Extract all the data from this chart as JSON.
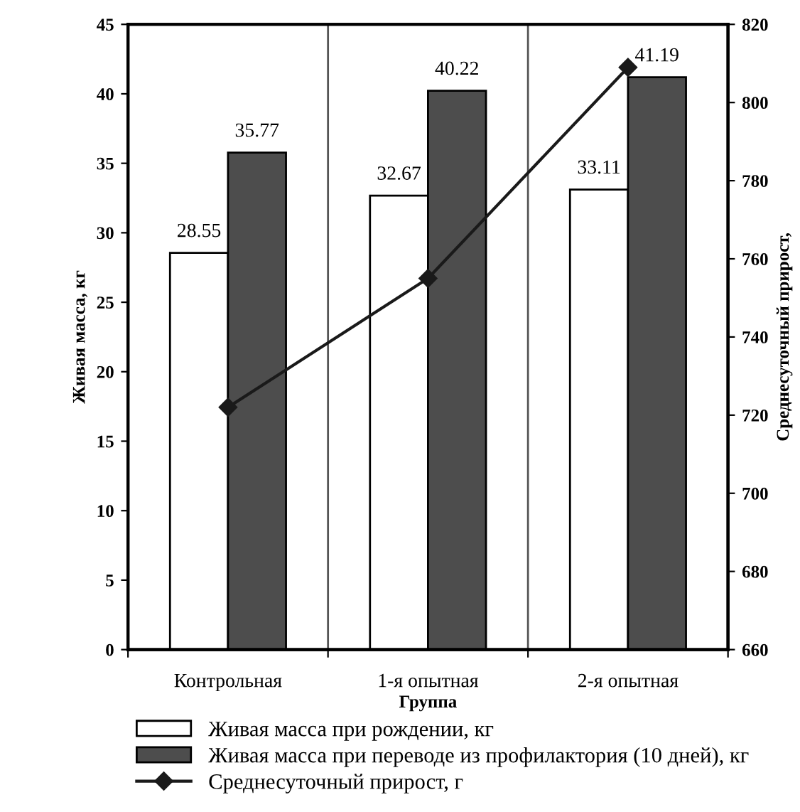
{
  "chart_data": {
    "type": "bar",
    "xlabel": "Группа",
    "ylabel": "Живая масса, кг",
    "y2label": "Среднесуточный прирост,",
    "categories": [
      "Контрольная",
      "1-я опытная",
      "2-я опытная"
    ],
    "series": [
      {
        "name": "Живая масса при рождении, кг",
        "color": "#ffffff",
        "values": [
          28.55,
          32.67,
          33.11
        ],
        "value_labels": [
          "28.55",
          "32.67",
          "33.11"
        ]
      },
      {
        "name": "Живая масса при переводе из профилактория (10 дней), кг",
        "color": "#4d4d4d",
        "values": [
          35.77,
          40.22,
          41.19
        ],
        "value_labels": [
          "35.77",
          "40.22",
          "41.19"
        ]
      },
      {
        "name": "Среднесуточный прирост, г",
        "color": "#1a1a1a",
        "type": "line",
        "axis": "y2",
        "marker": "diamond",
        "values": [
          722,
          755,
          809
        ]
      }
    ],
    "ylim": [
      0,
      45
    ],
    "yticks": [
      0,
      5,
      10,
      15,
      20,
      25,
      30,
      35,
      40,
      45
    ],
    "y2lim": [
      660,
      820
    ],
    "y2ticks": [
      660,
      680,
      700,
      720,
      740,
      760,
      780,
      800,
      820
    ],
    "grid": "x",
    "legend": "bottom"
  }
}
